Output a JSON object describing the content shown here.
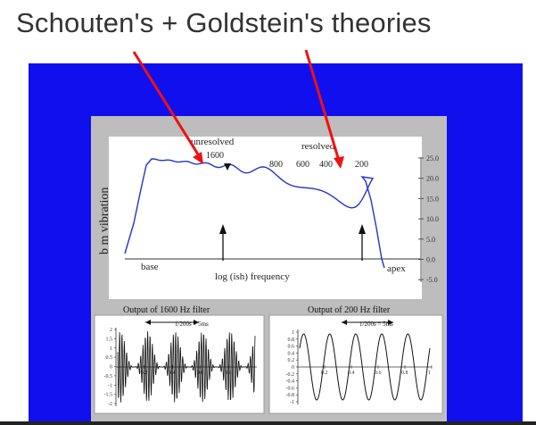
{
  "slide": {
    "title": "Schouten's + Goldstein's theories"
  },
  "main_plot": {
    "ylabel": "b m vibration",
    "xlabel": "log (ish) frequency",
    "label_base": "base",
    "label_apex": "apex",
    "label_unresolved": "unresolved",
    "label_resolved": "resolved",
    "freq_labels": [
      "1600",
      "800",
      "600",
      "400",
      "200"
    ],
    "y_ticks": [
      "25.0",
      "20.0",
      "15.0",
      "10.0",
      "5.0",
      "0.0",
      "-5.0"
    ]
  },
  "filter_plots": [
    {
      "title": "Output of 1600 Hz filter",
      "period_label": "1/200s = 5ms",
      "y_ticks": [
        "2",
        "1.5",
        "1",
        "0.5",
        "0",
        "-0.5",
        "-1",
        "-1.5",
        "-2"
      ],
      "x_ticks": [
        "0.2",
        "0.4",
        "0.6",
        "0.8"
      ]
    },
    {
      "title": "Output of 200 Hz filter",
      "period_label": "1/200s = 5ms",
      "y_ticks": [
        "1",
        "0.8",
        "0.6",
        "0.4",
        "0.2",
        "0",
        "-0.2",
        "-0.4",
        "-0.6",
        "-0.8",
        "-1"
      ],
      "x_ticks": [
        "0.2",
        "0.4",
        "0.6",
        "0.8",
        "1"
      ]
    }
  ],
  "colors": {
    "background_blue": "#1010ee",
    "panel_gray": "#bdbdbd",
    "curve_blue": "#2233cc",
    "arrow_red": "#ee1111"
  }
}
